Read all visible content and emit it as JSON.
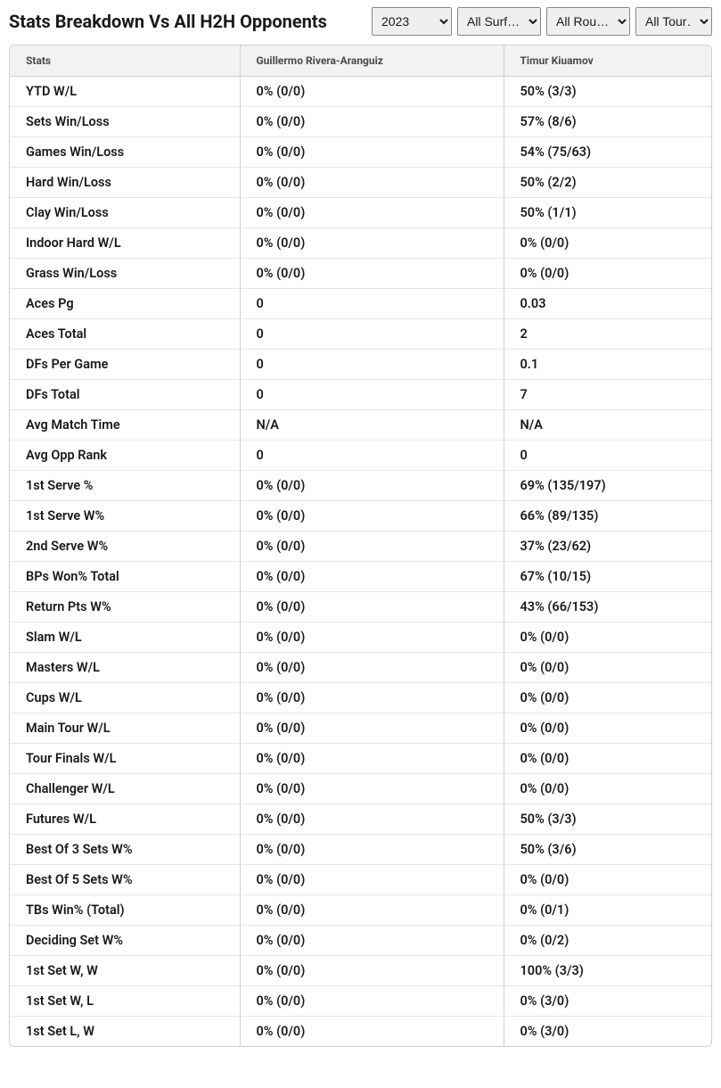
{
  "header": {
    "title": "Stats Breakdown Vs All H2H Opponents"
  },
  "filters": {
    "year": {
      "selected": "2023",
      "options": [
        "2023"
      ]
    },
    "surface": {
      "selected": "All Surf…",
      "options": [
        "All Surf…"
      ]
    },
    "round": {
      "selected": "All Rou…",
      "options": [
        "All Rou…"
      ]
    },
    "tour": {
      "selected": "All Tour…",
      "options": [
        "All Tour…"
      ]
    }
  },
  "table": {
    "columns": {
      "stat": "Stats",
      "player1": "Guillermo Rivera-Aranguiz",
      "player2": "Timur Kiuamov"
    },
    "rows": [
      {
        "stat": "YTD W/L",
        "p1": "0% (0/0)",
        "p2": "50% (3/3)"
      },
      {
        "stat": "Sets Win/Loss",
        "p1": "0% (0/0)",
        "p2": "57% (8/6)"
      },
      {
        "stat": "Games Win/Loss",
        "p1": "0% (0/0)",
        "p2": "54% (75/63)"
      },
      {
        "stat": "Hard Win/Loss",
        "p1": "0% (0/0)",
        "p2": "50% (2/2)"
      },
      {
        "stat": "Clay Win/Loss",
        "p1": "0% (0/0)",
        "p2": "50% (1/1)"
      },
      {
        "stat": "Indoor Hard W/L",
        "p1": "0% (0/0)",
        "p2": "0% (0/0)"
      },
      {
        "stat": "Grass Win/Loss",
        "p1": "0% (0/0)",
        "p2": "0% (0/0)"
      },
      {
        "stat": "Aces Pg",
        "p1": "0",
        "p2": "0.03"
      },
      {
        "stat": "Aces Total",
        "p1": "0",
        "p2": "2"
      },
      {
        "stat": "DFs Per Game",
        "p1": "0",
        "p2": "0.1"
      },
      {
        "stat": "DFs Total",
        "p1": "0",
        "p2": "7"
      },
      {
        "stat": "Avg Match Time",
        "p1": "N/A",
        "p2": "N/A"
      },
      {
        "stat": "Avg Opp Rank",
        "p1": "0",
        "p2": "0"
      },
      {
        "stat": "1st Serve %",
        "p1": "0% (0/0)",
        "p2": "69% (135/197)"
      },
      {
        "stat": "1st Serve W%",
        "p1": "0% (0/0)",
        "p2": "66% (89/135)"
      },
      {
        "stat": "2nd Serve W%",
        "p1": "0% (0/0)",
        "p2": "37% (23/62)"
      },
      {
        "stat": "BPs Won% Total",
        "p1": "0% (0/0)",
        "p2": "67% (10/15)"
      },
      {
        "stat": "Return Pts W%",
        "p1": "0% (0/0)",
        "p2": "43% (66/153)"
      },
      {
        "stat": "Slam W/L",
        "p1": "0% (0/0)",
        "p2": "0% (0/0)"
      },
      {
        "stat": "Masters W/L",
        "p1": "0% (0/0)",
        "p2": "0% (0/0)"
      },
      {
        "stat": "Cups W/L",
        "p1": "0% (0/0)",
        "p2": "0% (0/0)"
      },
      {
        "stat": "Main Tour W/L",
        "p1": "0% (0/0)",
        "p2": "0% (0/0)"
      },
      {
        "stat": "Tour Finals W/L",
        "p1": "0% (0/0)",
        "p2": "0% (0/0)"
      },
      {
        "stat": "Challenger W/L",
        "p1": "0% (0/0)",
        "p2": "0% (0/0)"
      },
      {
        "stat": "Futures W/L",
        "p1": "0% (0/0)",
        "p2": "50% (3/3)"
      },
      {
        "stat": "Best Of 3 Sets W%",
        "p1": "0% (0/0)",
        "p2": "50% (3/6)"
      },
      {
        "stat": "Best Of 5 Sets W%",
        "p1": "0% (0/0)",
        "p2": "0% (0/0)"
      },
      {
        "stat": "TBs Win% (Total)",
        "p1": "0% (0/0)",
        "p2": "0% (0/1)"
      },
      {
        "stat": "Deciding Set W%",
        "p1": "0% (0/0)",
        "p2": "0% (0/2)"
      },
      {
        "stat": "1st Set W, W",
        "p1": "0% (0/0)",
        "p2": "100% (3/3)"
      },
      {
        "stat": "1st Set W, L",
        "p1": "0% (0/0)",
        "p2": "0% (3/0)"
      },
      {
        "stat": "1st Set L, W",
        "p1": "0% (0/0)",
        "p2": "0% (3/0)"
      }
    ]
  },
  "style": {
    "header_bg": "#f2f2f2",
    "border_color": "#d0d0d0",
    "row_border": "#e6e6e6",
    "text_color": "#1a1a1a",
    "header_text": "#4a4a4a",
    "title_fontsize": 20,
    "thead_fontsize": 12,
    "cell_fontsize": 14.5
  }
}
